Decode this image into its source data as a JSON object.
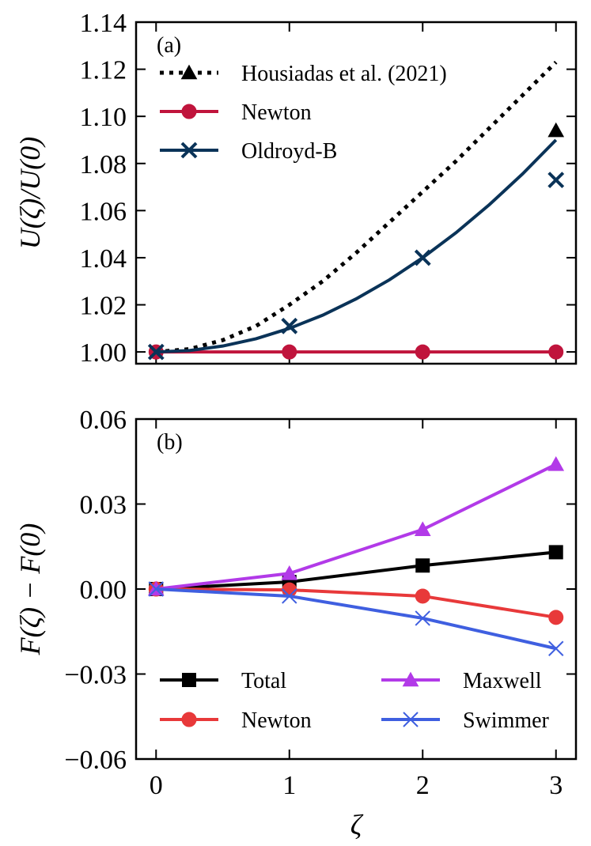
{
  "chart_data": [
    {
      "type": "line",
      "panel_label": "(a)",
      "ylabel": "U(ζ)/U(0)",
      "xlim": [
        -0.15,
        3.15
      ],
      "ylim": [
        0.995,
        1.14
      ],
      "xticks": [
        0,
        1,
        2,
        3
      ],
      "yticks": [
        1.0,
        1.02,
        1.04,
        1.06,
        1.08,
        1.1,
        1.12,
        1.14
      ],
      "ytick_labels": [
        "1.00",
        "1.02",
        "1.04",
        "1.06",
        "1.08",
        "1.10",
        "1.12",
        "1.14"
      ],
      "legend_position": "top-left",
      "series": [
        {
          "name": "Housiadas et al. (2021)",
          "style": "dotted",
          "marker": "triangle",
          "color": "#000000",
          "curve_x": [
            0,
            0.25,
            0.5,
            0.75,
            1.0,
            1.25,
            1.5,
            1.75,
            2.0,
            2.25,
            2.5,
            2.75,
            3.0
          ],
          "curve_y": [
            1.0,
            1.0012,
            1.005,
            1.011,
            1.02,
            1.03,
            1.042,
            1.055,
            1.068,
            1.081,
            1.095,
            1.109,
            1.123
          ],
          "points": [
            {
              "x": 3,
              "y": 1.094
            }
          ]
        },
        {
          "name": "Newton",
          "style": "solid",
          "marker": "circle",
          "color": "#c0143c",
          "curve_x": [
            0,
            3
          ],
          "curve_y": [
            1.0,
            1.0
          ],
          "points": [
            {
              "x": 0,
              "y": 1.0
            },
            {
              "x": 1,
              "y": 1.0
            },
            {
              "x": 2,
              "y": 1.0
            },
            {
              "x": 3,
              "y": 1.0
            }
          ]
        },
        {
          "name": "Oldroyd-B",
          "style": "solid",
          "marker": "x",
          "color": "#0a3358",
          "curve_x": [
            0,
            0.25,
            0.5,
            0.75,
            1.0,
            1.25,
            1.5,
            1.75,
            2.0,
            2.25,
            2.5,
            2.75,
            3.0
          ],
          "curve_y": [
            1.0,
            1.0006,
            1.0025,
            1.0056,
            1.01,
            1.0156,
            1.0225,
            1.0306,
            1.04,
            1.0506,
            1.0625,
            1.0756,
            1.09
          ],
          "points": [
            {
              "x": 0,
              "y": 1.0
            },
            {
              "x": 1,
              "y": 1.011
            },
            {
              "x": 2,
              "y": 1.04
            },
            {
              "x": 3,
              "y": 1.073
            }
          ]
        }
      ]
    },
    {
      "type": "line",
      "panel_label": "(b)",
      "xlabel": "ζ",
      "ylabel": "F(ζ) − F(0)",
      "xlim": [
        -0.15,
        3.15
      ],
      "ylim": [
        -0.06,
        0.06
      ],
      "xticks": [
        0,
        1,
        2,
        3
      ],
      "xtick_labels": [
        "0",
        "1",
        "2",
        "3"
      ],
      "yticks": [
        -0.06,
        -0.03,
        0.0,
        0.03,
        0.06
      ],
      "ytick_labels": [
        "−0.06",
        "−0.03",
        "0.00",
        "0.03",
        "0.06"
      ],
      "legend_position": "lower center, two columns",
      "series": [
        {
          "name": "Total",
          "marker": "square",
          "color": "#000000",
          "x": [
            0,
            1,
            2,
            3
          ],
          "y": [
            0.0,
            0.0025,
            0.0083,
            0.013
          ]
        },
        {
          "name": "Newton",
          "marker": "circle",
          "color": "#e8393a",
          "x": [
            0,
            1,
            2,
            3
          ],
          "y": [
            0.0,
            -0.0003,
            -0.0025,
            -0.01
          ]
        },
        {
          "name": "Maxwell",
          "marker": "triangle",
          "color": "#b23ae8",
          "x": [
            0,
            1,
            2,
            3
          ],
          "y": [
            0.0,
            0.0055,
            0.021,
            0.044
          ]
        },
        {
          "name": "Swimmer",
          "marker": "x",
          "color": "#3f5fe0",
          "x": [
            0,
            1,
            2,
            3
          ],
          "y": [
            0.0,
            -0.0025,
            -0.0103,
            -0.021
          ]
        }
      ]
    }
  ]
}
